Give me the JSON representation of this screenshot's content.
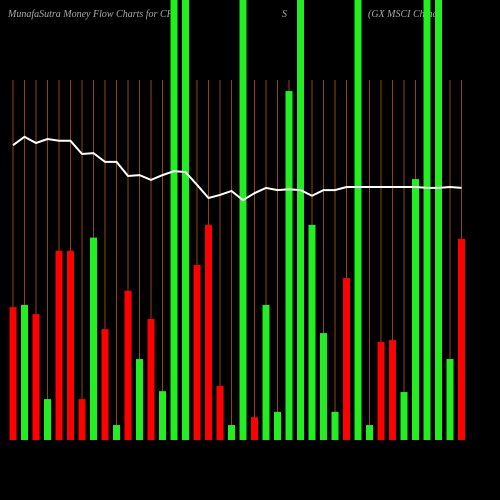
{
  "chart_data": {
    "type": "bar",
    "title_parts": [
      "MunafaSutra  Money Flow  Charts for CHI",
      "S",
      "(GX  MSCI China"
    ],
    "categories": [
      null,
      null,
      null,
      null,
      null,
      null,
      null,
      null,
      null,
      null,
      null,
      null,
      null,
      null,
      null,
      null,
      null,
      null,
      null,
      null,
      null,
      null,
      null,
      null,
      null,
      null,
      null,
      null,
      null,
      null,
      null,
      null,
      null,
      null,
      null,
      null,
      null,
      null,
      null,
      null
    ],
    "values": [
      30.2,
      30.7,
      28.6,
      9.3,
      43,
      43,
      9.3,
      46,
      25.2,
      3.4,
      33.9,
      18.4,
      27.5,
      11.1,
      100,
      100,
      39.8,
      48.9,
      12.3,
      3.4,
      100,
      5.2,
      30.7,
      6.4,
      79.3,
      100,
      48.9,
      24.3,
      6.4,
      36.8,
      100,
      3.4,
      22.3,
      22.7,
      10.9,
      59.3,
      100,
      100,
      18.4,
      45.7
    ],
    "bar_colors": [
      "#ff0000",
      "#22ee22",
      "#ff0000",
      "#22ee22",
      "#ff0000",
      "#ff0000",
      "#ff0000",
      "#22ee22",
      "#ff0000",
      "#22ee22",
      "#ff0000",
      "#22ee22",
      "#ff0000",
      "#22ee22",
      "#22ee22",
      "#22ee22",
      "#ff0000",
      "#ff0000",
      "#ff0000",
      "#22ee22",
      "#22ee22",
      "#ff0000",
      "#22ee22",
      "#22ee22",
      "#22ee22",
      "#22ee22",
      "#22ee22",
      "#22ee22",
      "#22ee22",
      "#ff0000",
      "#22ee22",
      "#22ee22",
      "#ff0000",
      "#ff0000",
      "#22ee22",
      "#22ee22",
      "#22ee22",
      "#22ee22",
      "#22ee22",
      "#ff0000"
    ],
    "line": {
      "color": "#ffffff",
      "values": [
        67,
        68.9,
        67.5,
        68.4,
        68,
        68,
        65,
        65.2,
        63.2,
        63.2,
        60,
        60.2,
        59.1,
        60.2,
        61.1,
        60.9,
        58,
        55,
        55.7,
        56.6,
        54.5,
        56.1,
        57.3,
        56.8,
        57,
        56.8,
        55.5,
        56.8,
        56.8,
        57.5,
        57.5,
        57.5,
        57.5,
        57.5,
        57.5,
        57.5,
        57.3,
        57.3,
        57.5,
        57.3
      ]
    },
    "ylim": [
      0,
      100
    ],
    "grid": true,
    "grid_color": "#b35a10"
  }
}
